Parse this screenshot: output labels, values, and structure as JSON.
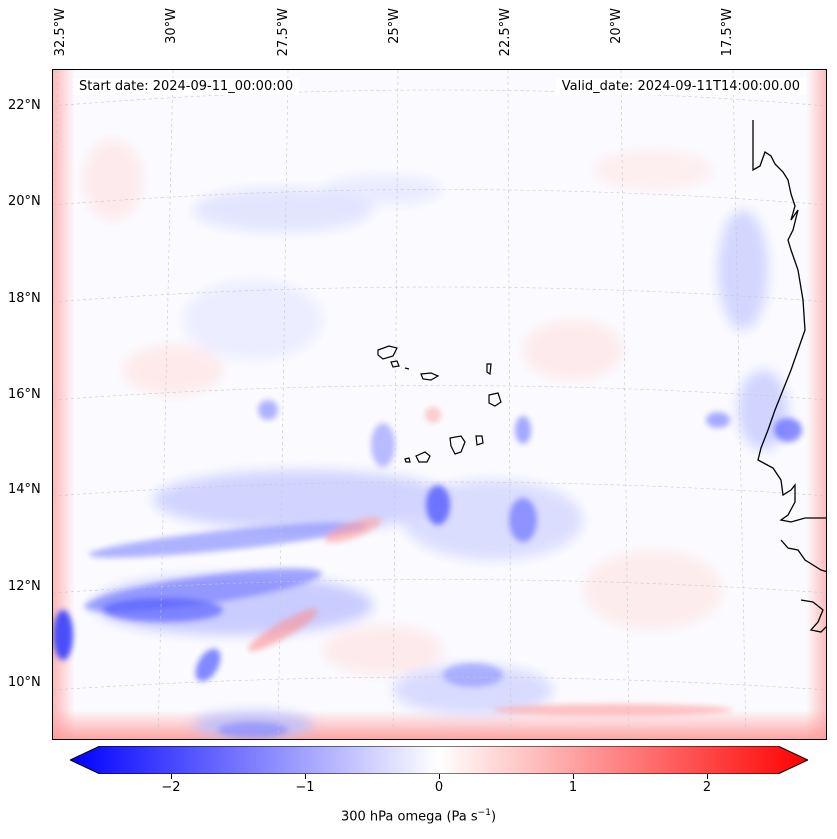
{
  "header": {
    "start_date": "Start date: 2024-09-11_00:00:00",
    "valid_date": "Valid_date: 2024-09-11T14:00:00.00"
  },
  "longitudes": [
    "32.5°W",
    "30°W",
    "27.5°W",
    "25°W",
    "22.5°W",
    "20°W",
    "17.5°W"
  ],
  "latitudes": [
    "22°N",
    "20°N",
    "18°N",
    "16°N",
    "14°N",
    "12°N",
    "10°N"
  ],
  "colorbar": {
    "label_main": "300 hPa omega (Pa s",
    "label_sup": "−1",
    "label_close": ")",
    "ticks": [
      "−2",
      "−1",
      "0",
      "1",
      "2"
    ],
    "range": [
      -2.7,
      2.7
    ],
    "colors": {
      "negative": "#0000ff",
      "zero": "#ffffff",
      "positive": "#ff0000"
    }
  },
  "map": {
    "field": "300 hPa omega",
    "coastline_color": "#000000",
    "graticule_color": "#c8c8c8"
  }
}
